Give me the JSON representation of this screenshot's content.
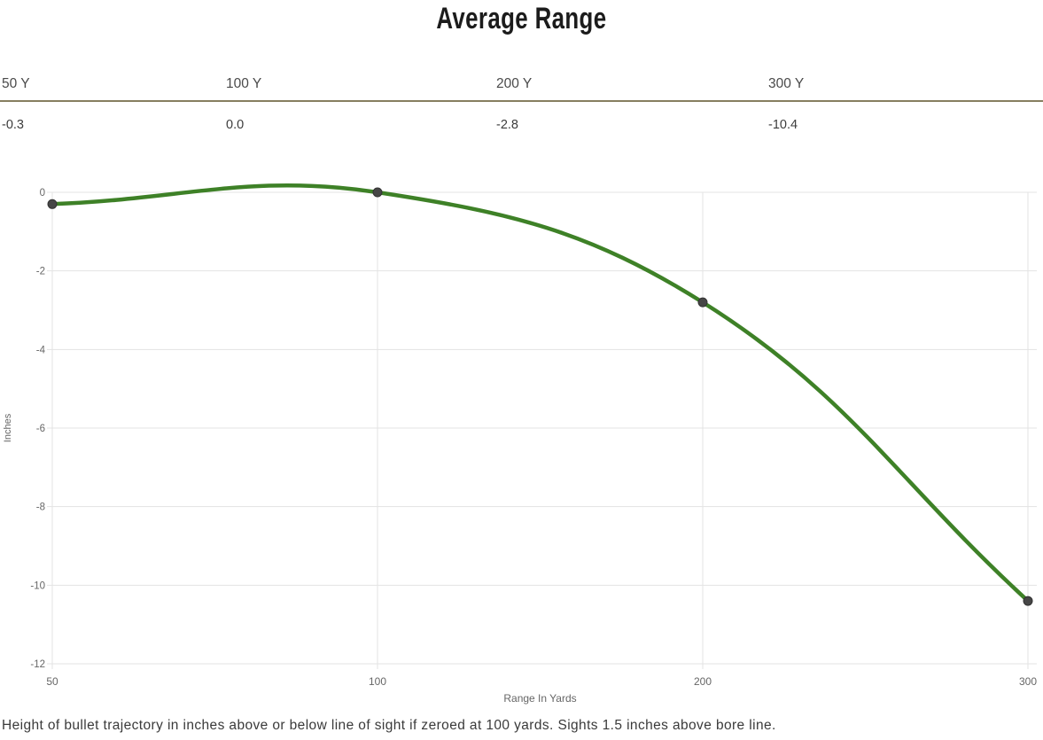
{
  "title": "Average Range",
  "range_table": {
    "columns": [
      {
        "label": "50 Y",
        "value": "-0.3"
      },
      {
        "label": "100 Y",
        "value": "0.0"
      },
      {
        "label": "200 Y",
        "value": "-2.8"
      },
      {
        "label": "300 Y",
        "value": "-10.4"
      }
    ]
  },
  "chart_data": {
    "type": "line",
    "title": "Average Range",
    "categories": [
      "50",
      "100",
      "200",
      "300"
    ],
    "x_values_yards": [
      50,
      100,
      200,
      300
    ],
    "series": [
      {
        "name": "Average Range",
        "values": [
          -0.3,
          0.0,
          -2.8,
          -10.4
        ]
      }
    ],
    "xlabel": "Range In Yards",
    "ylabel": "Inches",
    "ylim": [
      -12,
      0
    ],
    "yticks": [
      0,
      -2,
      -4,
      -6,
      -8,
      -10,
      -12
    ],
    "x_axis_type": "category-equal-spacing",
    "grid": true,
    "legend": "none",
    "curve": "bezier-tension-0.4",
    "colors": {
      "line": "#3e8127",
      "point_fill": "#464646",
      "point_border": "#333333",
      "gridline": "#e3e3e3",
      "tick_text": "#666666"
    }
  },
  "footnote": "Height of bullet trajectory in inches above or below line of sight if zeroed at 100 yards. Sights 1.5 inches above bore line."
}
